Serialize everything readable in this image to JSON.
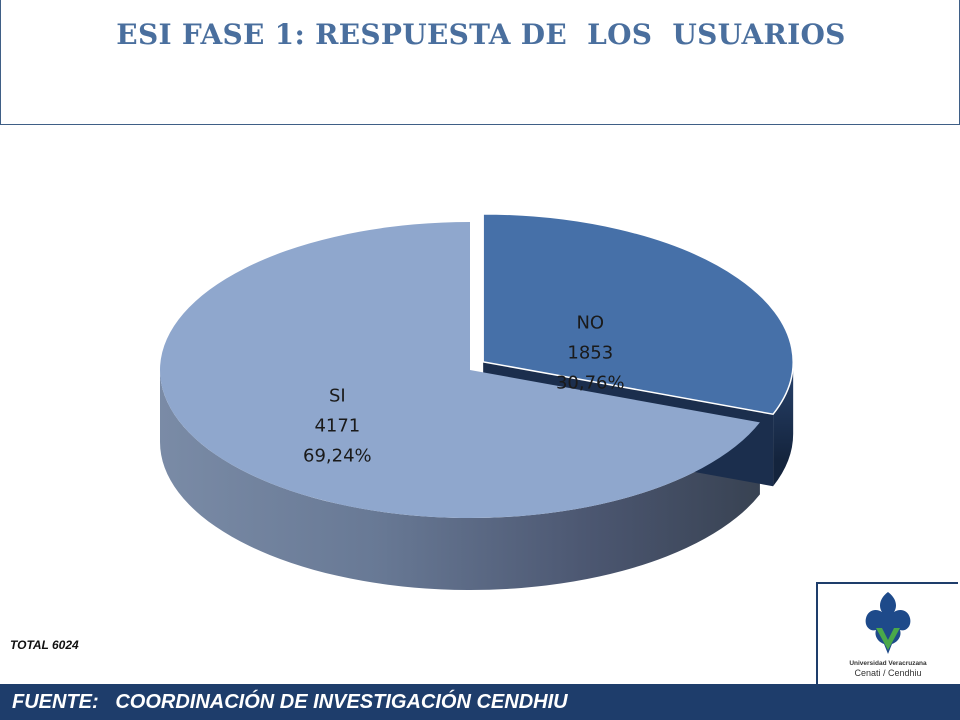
{
  "header": {
    "title": "ESI FASE 1: RESPUESTA DE  LOS  USUARIOS"
  },
  "chart_data": {
    "type": "pie",
    "style": "3d-exploded",
    "title": "ESI FASE 1: RESPUESTA DE  LOS  USUARIOS",
    "categories": [
      "NO",
      "SI"
    ],
    "values": [
      1853,
      4171
    ],
    "labels": [
      "NO",
      "SI"
    ],
    "count_labels": [
      "1853",
      "4171"
    ],
    "percent_labels": [
      "30,76%",
      "69,24%"
    ],
    "percents": [
      30.76,
      69.24
    ],
    "colors": [
      "#4670a8",
      "#8fa7cd"
    ],
    "exploded": [
      "NO"
    ],
    "legend": "none",
    "grid": false
  },
  "total_label": "TOTAL 6024",
  "logo": {
    "name": "Universidad Veracruzana",
    "unit": "Cenati / Cendhiu"
  },
  "footer": {
    "text": "FUENTE:   COORDINACIÓN DE INVESTIGACIÓN CENDHIU"
  }
}
